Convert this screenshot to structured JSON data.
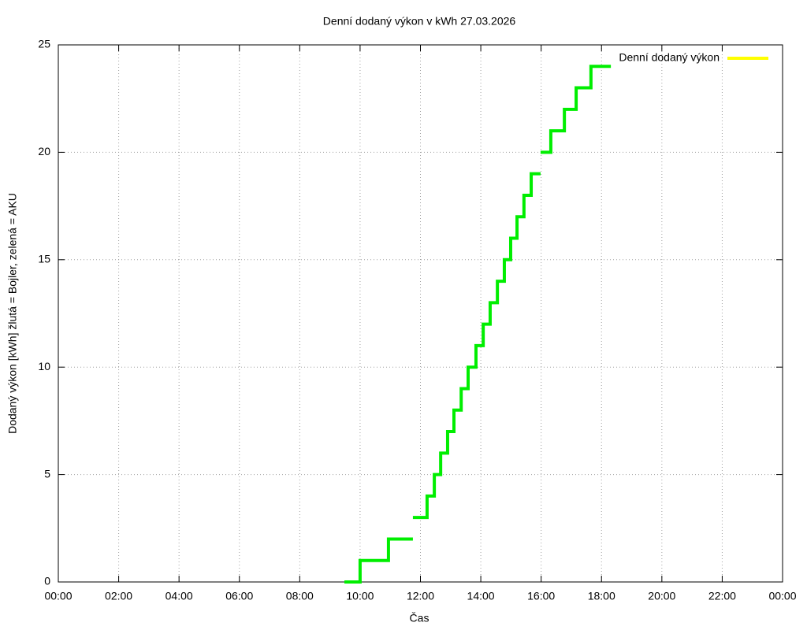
{
  "chart_data": {
    "type": "line",
    "title": "Denní dodaný výkon v kWh 27.03.2026",
    "x_label": "Čas",
    "y_label": "Dodaný výkon [kWh]  žlutá = Bojler, zelená = AKU",
    "xlim": [
      0,
      24
    ],
    "xticks": [
      {
        "value": 0,
        "label": "00:00"
      },
      {
        "value": 2,
        "label": "02:00"
      },
      {
        "value": 4,
        "label": "04:00"
      },
      {
        "value": 6,
        "label": "06:00"
      },
      {
        "value": 8,
        "label": "08:00"
      },
      {
        "value": 10,
        "label": "10:00"
      },
      {
        "value": 12,
        "label": "12:00"
      },
      {
        "value": 14,
        "label": "14:00"
      },
      {
        "value": 16,
        "label": "16:00"
      },
      {
        "value": 18,
        "label": "18:00"
      },
      {
        "value": 20,
        "label": "20:00"
      },
      {
        "value": 22,
        "label": "22:00"
      },
      {
        "value": 24,
        "label": "00:00"
      }
    ],
    "ylim": [
      0,
      25
    ],
    "yticks": [
      0,
      5,
      10,
      15,
      20,
      25
    ],
    "grid": true,
    "legend": "top-right",
    "series": [
      {
        "name": "Denní dodaný výkon",
        "color": "#ffff00",
        "x": [],
        "values": []
      },
      {
        "color": "#00ee00",
        "x": [
          9.48,
          10.0,
          10.0,
          10.94,
          10.94,
          11.75,
          null,
          11.75,
          12.22,
          12.22,
          12.46,
          12.46,
          12.67,
          12.67,
          12.9,
          12.9,
          13.11,
          13.11,
          13.35,
          13.35,
          13.58,
          13.58,
          13.84,
          13.84,
          14.08,
          14.08,
          14.31,
          14.31,
          14.55,
          14.55,
          14.78,
          14.78,
          14.99,
          14.99,
          15.2,
          15.2,
          15.43,
          15.43,
          15.67,
          15.67,
          15.98,
          null,
          15.98,
          16.32,
          16.32,
          16.77,
          16.77,
          17.16,
          17.16,
          17.65,
          17.65,
          18.31
        ],
        "values": [
          0,
          0,
          1,
          1,
          2,
          2,
          null,
          3,
          3,
          4,
          4,
          5,
          5,
          6,
          6,
          7,
          7,
          8,
          8,
          9,
          9,
          10,
          10,
          11,
          11,
          12,
          12,
          13,
          13,
          14,
          14,
          15,
          15,
          16,
          16,
          17,
          17,
          18,
          18,
          19,
          19,
          null,
          20,
          20,
          21,
          21,
          22,
          22,
          23,
          23,
          24,
          24
        ]
      }
    ]
  }
}
